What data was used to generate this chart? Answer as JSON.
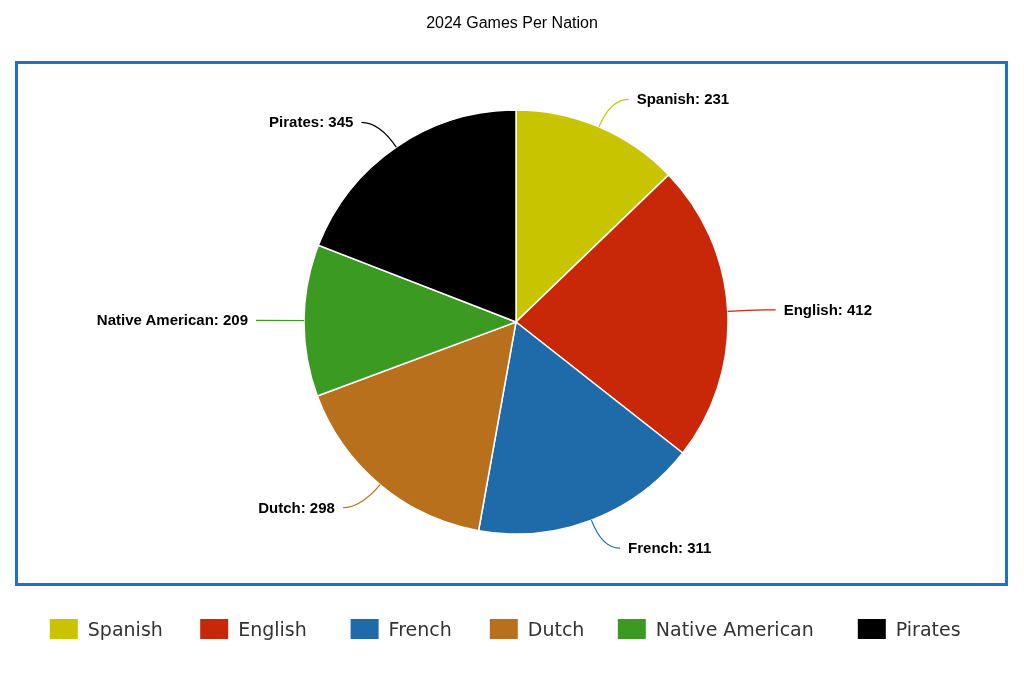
{
  "chart_data": {
    "type": "pie",
    "title": "2024 Games Per Nation",
    "categories": [
      "Spanish",
      "English",
      "French",
      "Dutch",
      "Native American",
      "Pirates"
    ],
    "values": [
      231,
      412,
      311,
      298,
      209,
      345
    ],
    "colors": [
      "#c8c400",
      "#c82808",
      "#1f6aa8",
      "#b8701c",
      "#3a9a22",
      "#000000"
    ],
    "value_labels": [
      "Spanish: 231",
      "English: 412",
      "French: 311",
      "Dutch: 298",
      "Native American: 209",
      "Pirates: 345"
    ],
    "legend": "bottom"
  }
}
